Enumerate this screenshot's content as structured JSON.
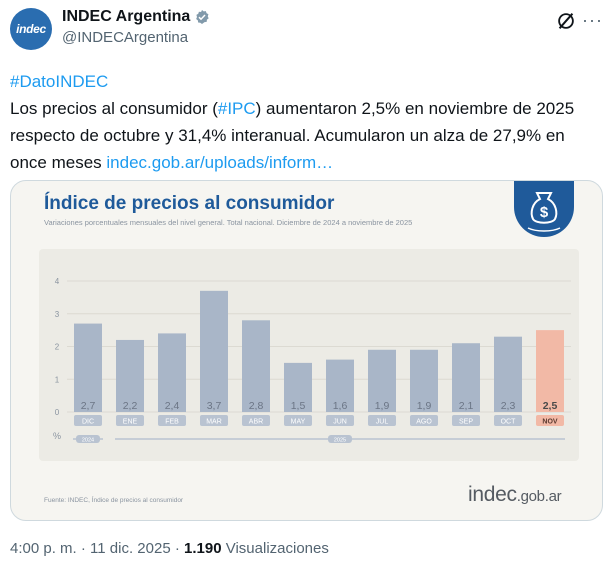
{
  "account": {
    "display_name": "INDEC Argentina",
    "handle": "@INDECArgentina",
    "avatar_text": "indec"
  },
  "tweet": {
    "hashtag": "#DatoINDEC",
    "line1_pre": "Los precios al consumidor (",
    "ipc_tag": "#IPC",
    "line1_post": ") aumentaron 2,5% en noviembre de 2025 respecto de octubre y 31,4% interanual. Acumularon un alza de 27,9% en once meses ",
    "link": "indec.gob.ar/uploads/inform…"
  },
  "card": {
    "title": "Índice de precios al consumidor",
    "subtitle": "Variaciones porcentuales mensuales del nivel general. Total nacional. Diciembre de 2024 a noviembre de 2025",
    "source": "Fuente: INDEC, Índice de precios al consumidor",
    "brand_main": "indec",
    "brand_suffix": ".gob.ar",
    "badge_symbol": "$"
  },
  "chart_data": {
    "type": "bar",
    "title": "Índice de precios al consumidor",
    "ylabel": "%",
    "ylim": [
      0,
      4
    ],
    "yticks": [
      0,
      1,
      2,
      3,
      4
    ],
    "categories": [
      "DIC",
      "ENE",
      "FEB",
      "MAR",
      "ABR",
      "MAY",
      "JUN",
      "JUL",
      "AGO",
      "SEP",
      "OCT",
      "NOV"
    ],
    "values": [
      2.7,
      2.2,
      2.4,
      3.7,
      2.8,
      1.5,
      1.6,
      1.9,
      1.9,
      2.1,
      2.3,
      2.5
    ],
    "value_labels": [
      "2,7",
      "2,2",
      "2,4",
      "3,7",
      "2,8",
      "1,5",
      "1,6",
      "1,9",
      "1,9",
      "2,1",
      "2,3",
      "2,5"
    ],
    "year_labels": [
      {
        "label": "2024",
        "from": 0,
        "to": 0
      },
      {
        "label": "2025",
        "from": 1,
        "to": 11
      }
    ],
    "highlight_index": 11,
    "colors": {
      "bar": "#a9b6c8",
      "highlight": "#f2b9a6",
      "value_text": "#6b7585",
      "highlight_text": "#4a4a4a"
    }
  },
  "footer": {
    "time": "4:00 p. m.",
    "separator": " · ",
    "date": "11 dic. 2025",
    "views_count": "1.190",
    "views_label": "Visualizaciones"
  }
}
